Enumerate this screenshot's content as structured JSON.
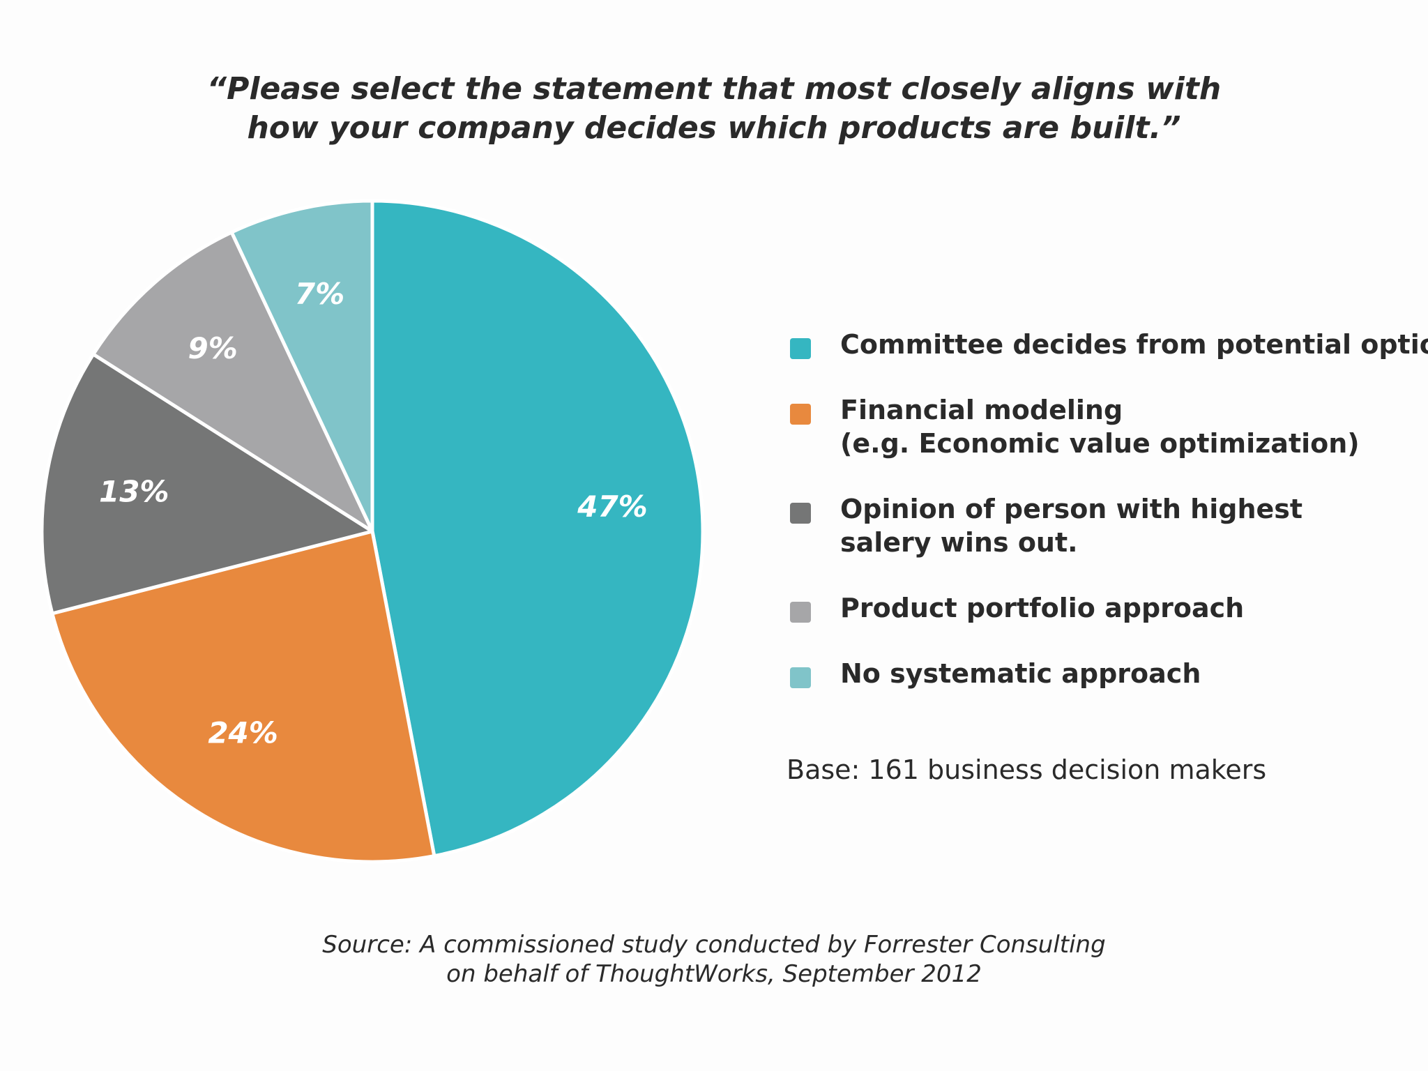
{
  "chart_data": {
    "type": "pie",
    "title": {
      "line1": "“Please select the statement that most closely aligns with",
      "line2": "how your company decides which products are built.”"
    },
    "slices": [
      {
        "label": "Committee decides from potential options",
        "legend_lines": [
          "Committee decides from potential options"
        ],
        "value": 47,
        "display": "47%",
        "color": "#35b6c1"
      },
      {
        "label": "Financial modeling (e.g. Economic value optimization)",
        "legend_lines": [
          "Financial modeling",
          "(e.g. Economic value optimization)"
        ],
        "value": 24,
        "display": "24%",
        "color": "#e8893e"
      },
      {
        "label": "Opinion of person with highest salery wins out.",
        "legend_lines": [
          "Opinion of person with highest",
          "salery wins out."
        ],
        "value": 13,
        "display": "13%",
        "color": "#757676"
      },
      {
        "label": "Product portfolio approach",
        "legend_lines": [
          "Product portfolio approach"
        ],
        "value": 9,
        "display": "9%",
        "color": "#a6a6a8"
      },
      {
        "label": "No systematic approach",
        "legend_lines": [
          "No systematic approach"
        ],
        "value": 7,
        "display": "7%",
        "color": "#80c4c9"
      }
    ],
    "legend_position": "right",
    "base_note": "Base: 161 business decision makers",
    "source": {
      "line1": "Source: A commissioned study conducted by Forrester Consulting",
      "line2": "on behalf of ThoughtWorks, September 2012"
    }
  }
}
